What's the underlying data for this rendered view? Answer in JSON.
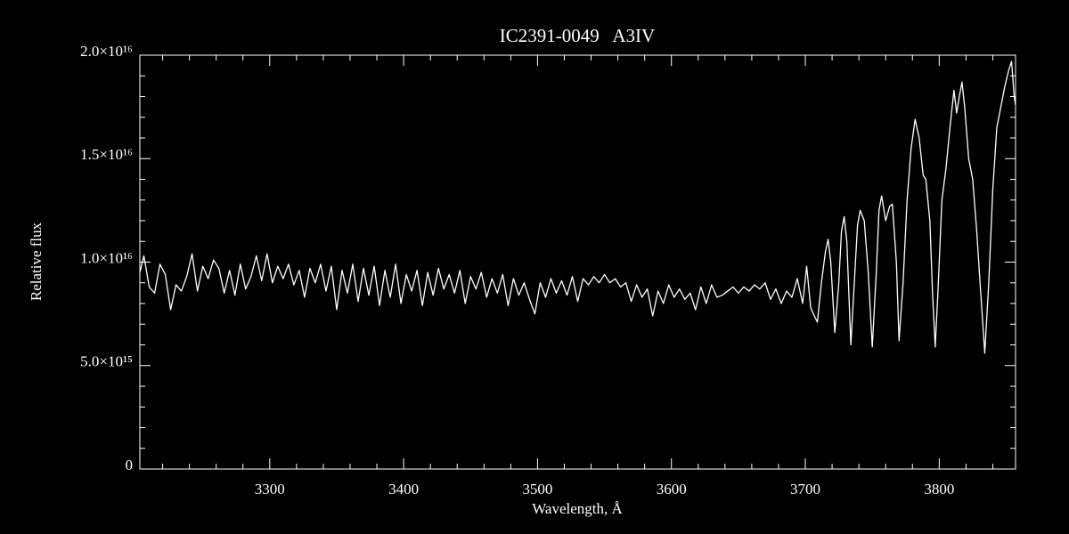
{
  "chart_data": {
    "type": "line",
    "title": "IC2391-0049   A3IV",
    "x_label": "Wavelength, Å",
    "y_label": "Relative flux",
    "color": "#ffffff",
    "xlim": [
      3203,
      3857
    ],
    "ylim": [
      0,
      2e+16
    ],
    "xticks": [
      3300,
      3400,
      3500,
      3600,
      3700,
      3800
    ],
    "yticks": [
      0,
      {
        "value": 5000000000000000.0,
        "label": "5.0×10¹⁵"
      },
      {
        "value": 1e+16,
        "label": "1.0×10¹⁶"
      },
      {
        "value": 1.5e+16,
        "label": "1.5×10¹⁶"
      },
      {
        "value": 2e+16,
        "label": "2.0×10¹⁶"
      }
    ],
    "xminorticks": [
      3220,
      3240,
      3260,
      3280,
      3320,
      3340,
      3360,
      3380,
      3420,
      3440,
      3460,
      3480,
      3520,
      3540,
      3560,
      3580,
      3620,
      3640,
      3660,
      3680,
      3720,
      3740,
      3760,
      3780,
      3820,
      3840
    ],
    "yminorticks": [
      1000000000000000.0,
      2000000000000000.0,
      3000000000000000.0,
      4000000000000000.0,
      6000000000000000.0,
      7000000000000000.0,
      8000000000000000.0,
      9000000000000000.0,
      1.1e+16,
      1.2e+16,
      1.3e+16,
      1.4e+16,
      1.6e+16,
      1.7e+16,
      1.8e+16,
      1.9e+16
    ],
    "x": [
      3203,
      3206,
      3210,
      3214,
      3218,
      3222,
      3226,
      3230,
      3234,
      3238,
      3242,
      3246,
      3250,
      3254,
      3258,
      3262,
      3266,
      3270,
      3274,
      3278,
      3282,
      3286,
      3290,
      3294,
      3298,
      3302,
      3306,
      3310,
      3314,
      3318,
      3322,
      3326,
      3330,
      3334,
      3338,
      3342,
      3346,
      3350,
      3354,
      3358,
      3362,
      3366,
      3370,
      3374,
      3378,
      3382,
      3386,
      3390,
      3394,
      3398,
      3402,
      3406,
      3410,
      3414,
      3418,
      3422,
      3426,
      3430,
      3434,
      3438,
      3442,
      3446,
      3450,
      3454,
      3458,
      3462,
      3466,
      3470,
      3474,
      3478,
      3482,
      3486,
      3490,
      3494,
      3498,
      3502,
      3506,
      3510,
      3514,
      3518,
      3522,
      3526,
      3530,
      3534,
      3538,
      3542,
      3546,
      3550,
      3554,
      3558,
      3562,
      3566,
      3570,
      3574,
      3578,
      3582,
      3586,
      3590,
      3594,
      3598,
      3602,
      3606,
      3610,
      3614,
      3618,
      3622,
      3626,
      3630,
      3634,
      3638,
      3642,
      3646,
      3650,
      3654,
      3658,
      3662,
      3666,
      3670,
      3674,
      3678,
      3682,
      3686,
      3690,
      3694,
      3698,
      3701,
      3704,
      3706,
      3709,
      3712,
      3715,
      3717,
      3719,
      3722,
      3725,
      3727,
      3729,
      3731,
      3734,
      3737,
      3739,
      3741,
      3744,
      3747,
      3750,
      3753,
      3755,
      3757,
      3760,
      3763,
      3765,
      3768,
      3770,
      3773,
      3776,
      3779,
      3782,
      3785,
      3788,
      3790,
      3793,
      3795,
      3797,
      3799,
      3802,
      3805,
      3808,
      3811,
      3813,
      3815,
      3817,
      3819,
      3822,
      3825,
      3828,
      3831,
      3834,
      3837,
      3840,
      3843,
      3846,
      3849,
      3852,
      3854,
      3856,
      3857
    ],
    "values": [
      9500000000000000.0,
      1.03e+16,
      8800000000000000.0,
      8500000000000000.0,
      9900000000000000.0,
      9400000000000000.0,
      7700000000000000.0,
      8900000000000000.0,
      8600000000000000.0,
      9300000000000000.0,
      1.04e+16,
      8600000000000000.0,
      9800000000000000.0,
      9200000000000000.0,
      1.01e+16,
      9700000000000000.0,
      8500000000000000.0,
      9600000000000000.0,
      8400000000000000.0,
      9900000000000000.0,
      8700000000000000.0,
      9300000000000000.0,
      1.03e+16,
      9100000000000000.0,
      1.04e+16,
      9000000000000000.0,
      9800000000000000.0,
      9200000000000000.0,
      9900000000000000.0,
      8900000000000000.0,
      9600000000000000.0,
      8300000000000000.0,
      9700000000000000.0,
      9000000000000000.0,
      9900000000000000.0,
      8600000000000000.0,
      9800000000000000.0,
      7700000000000000.0,
      9600000000000000.0,
      8500000000000000.0,
      9900000000000000.0,
      8100000000000000.0,
      9700000000000000.0,
      8400000000000000.0,
      9800000000000000.0,
      7900000000000000.0,
      9600000000000000.0,
      8300000000000000.0,
      9900000000000000.0,
      8000000000000000.0,
      9400000000000000.0,
      8600000000000000.0,
      9600000000000000.0,
      7900000000000000.0,
      9500000000000000.0,
      8400000000000000.0,
      9700000000000000.0,
      8700000000000000.0,
      9400000000000000.0,
      8500000000000000.0,
      9600000000000000.0,
      8000000000000000.0,
      9300000000000000.0,
      8700000000000000.0,
      9500000000000000.0,
      8300000000000000.0,
      9200000000000000.0,
      8500000000000000.0,
      9400000000000000.0,
      7900000000000000.0,
      9200000000000000.0,
      8400000000000000.0,
      9000000000000000.0,
      8200000000000000.0,
      7500000000000000.0,
      9000000000000000.0,
      8300000000000000.0,
      9200000000000000.0,
      8500000000000000.0,
      9100000000000000.0,
      8400000000000000.0,
      9300000000000000.0,
      8100000000000000.0,
      9200000000000000.0,
      8900000000000000.0,
      9300000000000000.0,
      9000000000000000.0,
      9400000000000000.0,
      9000000000000000.0,
      9200000000000000.0,
      8800000000000000.0,
      9000000000000000.0,
      8100000000000000.0,
      8900000000000000.0,
      8300000000000000.0,
      8700000000000000.0,
      7400000000000000.0,
      8600000000000000.0,
      8000000000000000.0,
      8900000000000000.0,
      8300000000000000.0,
      8700000000000000.0,
      8200000000000000.0,
      8500000000000000.0,
      7700000000000000.0,
      8800000000000000.0,
      8000000000000000.0,
      8900000000000000.0,
      8300000000000000.0,
      8400000000000000.0,
      8600000000000000.0,
      8800000000000000.0,
      8500000000000000.0,
      8800000000000000.0,
      8600000000000000.0,
      8900000000000000.0,
      8700000000000000.0,
      9000000000000000.0,
      8200000000000000.0,
      8700000000000000.0,
      8000000000000000.0,
      8600000000000000.0,
      8300000000000000.0,
      9200000000000000.0,
      8000000000000000.0,
      9800000000000000.0,
      7800000000000000.0,
      7500000000000000.0,
      7100000000000000.0,
      9000000000000000.0,
      1.05e+16,
      1.11e+16,
      1e+16,
      6600000000000000.0,
      9000000000000000.0,
      1.15e+16,
      1.22e+16,
      1.1e+16,
      6000000000000000.0,
      9500000000000000.0,
      1.18e+16,
      1.25e+16,
      1.2e+16,
      9500000000000000.0,
      5900000000000000.0,
      9500000000000000.0,
      1.25e+16,
      1.32e+16,
      1.2e+16,
      1.27e+16,
      1.28e+16,
      1e+16,
      6200000000000000.0,
      9000000000000000.0,
      1.3e+16,
      1.55e+16,
      1.69e+16,
      1.6e+16,
      1.42e+16,
      1.4e+16,
      1.2e+16,
      8500000000000000.0,
      5900000000000000.0,
      8500000000000000.0,
      1.3e+16,
      1.45e+16,
      1.65e+16,
      1.83e+16,
      1.72e+16,
      1.8e+16,
      1.87e+16,
      1.75e+16,
      1.5e+16,
      1.4e+16,
      1.15e+16,
      8500000000000000.0,
      5600000000000000.0,
      9000000000000000.0,
      1.35e+16,
      1.65e+16,
      1.75e+16,
      1.85e+16,
      1.93e+16,
      1.97e+16,
      1.8e+16,
      1.76e+16
    ]
  }
}
